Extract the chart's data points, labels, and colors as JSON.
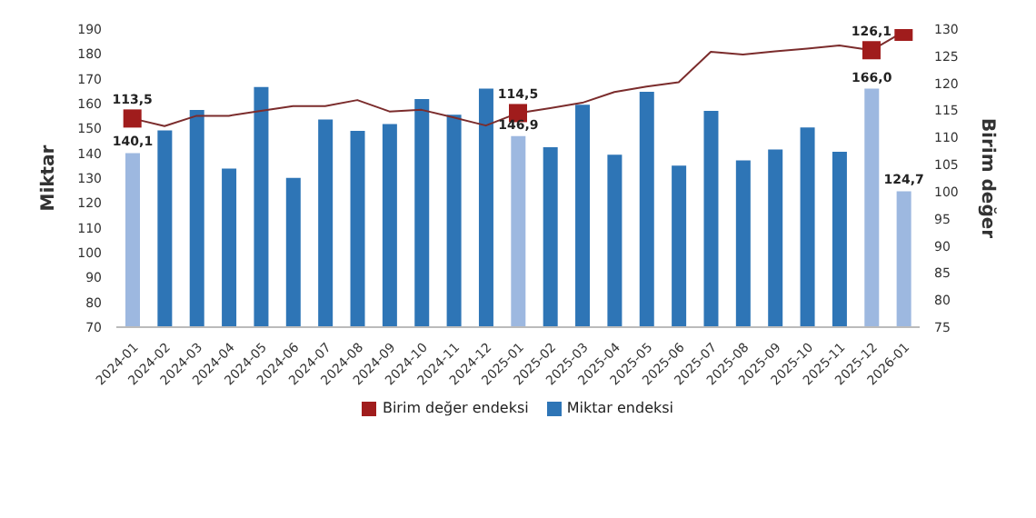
{
  "chart_data": {
    "type": "bar",
    "categories": [
      "2024-01",
      "2024-02",
      "2024-03",
      "2024-04",
      "2024-05",
      "2024-06",
      "2024-07",
      "2024-08",
      "2024-09",
      "2024-10",
      "2024-11",
      "2024-12",
      "2025-01",
      "2025-02",
      "2025-03",
      "2025-04",
      "2025-05",
      "2025-06",
      "2025-07",
      "2025-08",
      "2025-09",
      "2025-10",
      "2025-11",
      "2025-12",
      "2026-01"
    ],
    "series": [
      {
        "name": "Birim değer endeksi",
        "type": "line",
        "axis": "y2",
        "color": "#7b2c2c",
        "colors": [
          "#a01c1c",
          null,
          null,
          null,
          null,
          null,
          null,
          null,
          null,
          null,
          null,
          null,
          "#a01c1c",
          null,
          null,
          null,
          null,
          null,
          null,
          null,
          null,
          null,
          null,
          "#a01c1c",
          "#a01c1c"
        ],
        "values": [
          113.5,
          112.1,
          114.0,
          114.0,
          114.9,
          115.8,
          115.8,
          116.9,
          114.8,
          115.1,
          113.7,
          112.2,
          114.5,
          115.4,
          116.4,
          118.4,
          119.4,
          120.2,
          125.8,
          125.3,
          125.9,
          126.4,
          127.0,
          126.1,
          129.5
        ],
        "value_labels": [
          "113,5",
          null,
          null,
          null,
          null,
          null,
          null,
          null,
          null,
          null,
          null,
          null,
          "114,5",
          null,
          null,
          null,
          null,
          null,
          null,
          null,
          null,
          null,
          null,
          "126,1",
          null
        ]
      },
      {
        "name": "Miktar endeksi",
        "color": "#2e75b6",
        "colors": [
          "#9db8e0",
          "#2e75b6",
          "#2e75b6",
          "#2e75b6",
          "#2e75b6",
          "#2e75b6",
          "#2e75b6",
          "#2e75b6",
          "#2e75b6",
          "#2e75b6",
          "#2e75b6",
          "#2e75b6",
          "#9db8e0",
          "#2e75b6",
          "#2e75b6",
          "#2e75b6",
          "#2e75b6",
          "#2e75b6",
          "#2e75b6",
          "#2e75b6",
          "#2e75b6",
          "#2e75b6",
          "#2e75b6",
          "#9db8e0",
          "#9db8e0"
        ],
        "values": [
          140.1,
          149.2,
          157.4,
          133.8,
          166.7,
          130.1,
          153.6,
          149.0,
          151.8,
          161.8,
          155.5,
          166.0,
          146.9,
          142.4,
          159.5,
          139.4,
          164.8,
          135.0,
          157.1,
          137.1,
          141.5,
          150.4,
          140.6,
          166.0,
          124.7
        ],
        "value_labels": [
          "140,1",
          null,
          null,
          null,
          null,
          null,
          null,
          null,
          null,
          null,
          null,
          null,
          "146,9",
          null,
          null,
          null,
          null,
          null,
          null,
          null,
          null,
          null,
          null,
          "166,0",
          "124,7"
        ]
      }
    ],
    "ylabel": "Miktar",
    "y2label": "Birim değer",
    "ylim": [
      70,
      190
    ],
    "yticks": [
      70,
      80,
      90,
      100,
      110,
      120,
      130,
      140,
      150,
      160,
      170,
      180,
      190
    ],
    "y2lim": [
      75,
      130
    ],
    "y2ticks": [
      75,
      80,
      85,
      90,
      95,
      100,
      105,
      110,
      115,
      120,
      125,
      130
    ],
    "legend": "bottom"
  }
}
